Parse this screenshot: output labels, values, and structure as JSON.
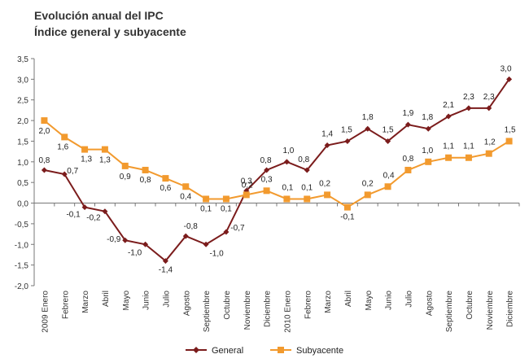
{
  "chart_data": {
    "type": "line",
    "title": "Evolución anual del IPC",
    "subtitle": "Índice general y subyacente",
    "categories": [
      "2009 Enero",
      "Febrero",
      "Marzo",
      "Abril",
      "Mayo",
      "Junio",
      "Julio",
      "Agosto",
      "Septiembre",
      "Octubre",
      "Noviembre",
      "Diciembre",
      "2010 Enero",
      "Febrero",
      "Marzo",
      "Abril",
      "Mayo",
      "Junio",
      "Julio",
      "Agosto",
      "Septiembre",
      "Octubre",
      "Noviembre",
      "Diciembre"
    ],
    "ylim": [
      -2.0,
      3.5
    ],
    "yticks": [
      "-2,0",
      "-1,5",
      "-1,0",
      "-0,5",
      "0,0",
      "0,5",
      "1,0",
      "1,5",
      "2,0",
      "2,5",
      "3,0",
      "3,5"
    ],
    "grid": false,
    "legend_position": "bottom",
    "series": [
      {
        "name": "General",
        "color": "#7b1c1c",
        "marker": "diamond",
        "values": [
          0.8,
          0.7,
          -0.1,
          -0.2,
          -0.9,
          -1.0,
          -1.4,
          -0.8,
          -1.0,
          -0.7,
          0.3,
          0.8,
          1.0,
          0.8,
          1.4,
          1.5,
          1.8,
          1.5,
          1.9,
          1.8,
          2.1,
          2.3,
          2.3,
          3.0
        ],
        "labels": [
          "0,8",
          "0,7",
          "-0,1",
          "-0,2",
          "-0,9",
          "-1,0",
          "-1,4",
          "-0,8",
          "-1,0",
          "-0,7",
          "0,3",
          "0,8",
          "1,0",
          "0,8",
          "1,4",
          "1,5",
          "1,8",
          "1,5",
          "1,9",
          "1,8",
          "2,1",
          "2,3",
          "2,3",
          "3,0"
        ]
      },
      {
        "name": "Subyacente",
        "color": "#f29a2e",
        "marker": "square",
        "values": [
          2.0,
          1.6,
          1.3,
          1.3,
          0.9,
          0.8,
          0.6,
          0.4,
          0.1,
          0.1,
          0.2,
          0.3,
          0.1,
          0.1,
          0.2,
          -0.1,
          0.2,
          0.4,
          0.8,
          1.0,
          1.1,
          1.1,
          1.2,
          1.5
        ],
        "labels": [
          "2,0",
          "1,6",
          "1,3",
          "1,3",
          "0,9",
          "0,8",
          "0,6",
          "0,4",
          "0,1",
          "0,1",
          "0,2",
          "0,3",
          "0,1",
          "0,1",
          "0,2",
          "-0,1",
          "0,2",
          "0,4",
          "0,8",
          "1,0",
          "1,1",
          "1,1",
          "1,2",
          "1,5"
        ]
      }
    ]
  }
}
